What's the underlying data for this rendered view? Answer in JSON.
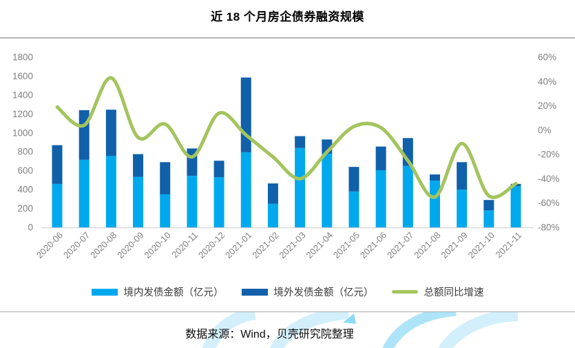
{
  "page": {
    "title": "近 18 个月房企债券融资规模",
    "source_note": "数据来源：Wind，贝壳研究院整理"
  },
  "colors": {
    "domestic_bar": "#00a9ee",
    "overseas_bar": "#1160aa",
    "growth_line": "#a3c45e",
    "axis_text": "#7f7f7f",
    "axis_line": "#d9d9d9",
    "divider": "#b0b0b0",
    "watermark_light": "#d2effb",
    "watermark_mid": "#aee4f8"
  },
  "chart_data": {
    "type": "bar",
    "subtype": "stacked-bars-with-line-overlay",
    "title": "近 18 个月房企债券融资规模",
    "categories": [
      "2020-06",
      "2020-07",
      "2020-08",
      "2020-09",
      "2020-10",
      "2020-11",
      "2020-12",
      "2021-01",
      "2021-02",
      "2021-03",
      "2021-04",
      "2021-05",
      "2021-06",
      "2021-07",
      "2021-08",
      "2021-09",
      "2021-10",
      "2021-11"
    ],
    "series": [
      {
        "name": "境内发债金额（亿元）",
        "type": "bar",
        "stack": "total",
        "axis": "left",
        "color": "#00a9ee",
        "values": [
          460,
          715,
          755,
          535,
          350,
          545,
          530,
          795,
          250,
          840,
          780,
          380,
          605,
          650,
          495,
          400,
          180,
          435
        ]
      },
      {
        "name": "境外发债金额（亿元）",
        "type": "bar",
        "stack": "total",
        "axis": "left",
        "color": "#1160aa",
        "values": [
          410,
          525,
          490,
          240,
          340,
          290,
          175,
          790,
          215,
          125,
          150,
          260,
          250,
          295,
          65,
          290,
          110,
          25
        ]
      },
      {
        "name": "总额同比增速",
        "type": "line",
        "axis": "right",
        "color": "#a3c45e",
        "unit": "percent",
        "values": [
          19,
          4,
          43,
          -6,
          5,
          -22,
          14,
          -4,
          -22,
          -40,
          -18,
          3,
          2,
          -25,
          -55,
          -11,
          -54,
          -44
        ]
      }
    ],
    "stack_totals": [
      870,
      1240,
      1245,
      775,
      690,
      835,
      705,
      1585,
      465,
      965,
      930,
      640,
      855,
      945,
      560,
      690,
      290,
      460
    ],
    "axes": {
      "left": {
        "min": 0,
        "max": 1800,
        "step": 200
      },
      "right": {
        "min": -80,
        "max": 60,
        "step": 20,
        "format": "percent",
        "tick_labels": [
          "60%",
          "40%",
          "20%",
          "0%",
          "-20%",
          "-40%",
          "-60%",
          "-80%"
        ]
      }
    },
    "grid": false,
    "legend_position": "bottom",
    "x_label_rotation_deg": 45
  }
}
